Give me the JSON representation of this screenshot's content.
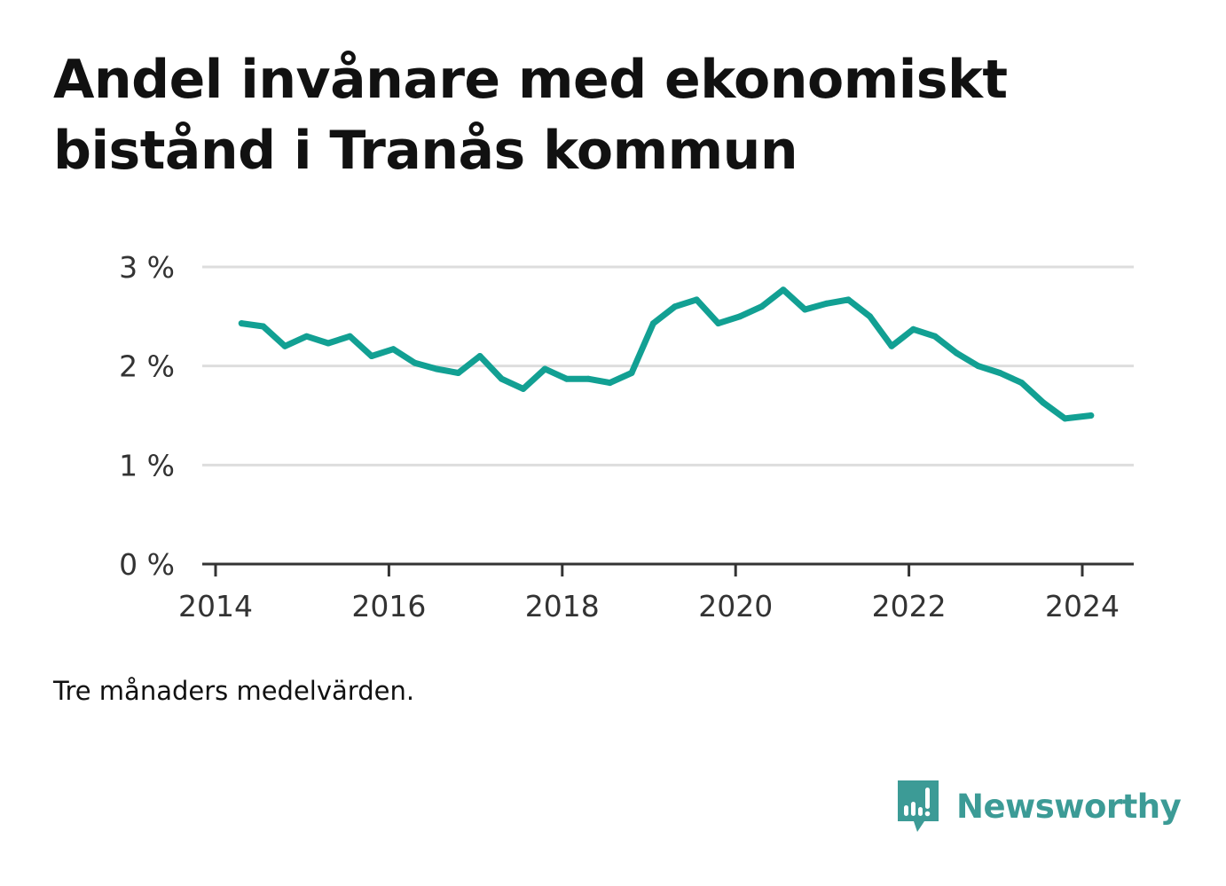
{
  "title": "Andel invånare med ekonomiskt bistånd i Tranås kommun",
  "note": "Tre månaders medelvärden.",
  "brand": {
    "name": "Newsworthy",
    "icon": "bar-chart-speech-bubble-icon",
    "color": "#3c9b96"
  },
  "chart_data": {
    "type": "line",
    "title": "Andel invånare med ekonomiskt bistånd i Tranås kommun",
    "xlabel": "",
    "ylabel": "",
    "x_ticks": [
      2014,
      2016,
      2018,
      2020,
      2022,
      2024
    ],
    "y_ticks": [
      0,
      1,
      2,
      3
    ],
    "y_tick_labels": [
      "0 %",
      "1 %",
      "2 %",
      "3 %"
    ],
    "xlim": [
      2014,
      2024.5
    ],
    "ylim": [
      0,
      3
    ],
    "grid": true,
    "line_color": "#12a093",
    "series": [
      {
        "x": [
          2014.3,
          2014.55,
          2014.8,
          2015.05,
          2015.3,
          2015.55,
          2015.8,
          2016.05,
          2016.3,
          2016.55,
          2016.8,
          2017.05,
          2017.3,
          2017.55,
          2017.8,
          2018.05,
          2018.3,
          2018.55,
          2018.8,
          2019.05,
          2019.3,
          2019.55,
          2019.8,
          2020.05,
          2020.3,
          2020.55,
          2020.8,
          2021.05,
          2021.3,
          2021.55,
          2021.8,
          2022.05,
          2022.3,
          2022.55,
          2022.8,
          2023.05,
          2023.3,
          2023.55,
          2023.8,
          2024.1
        ],
        "values": [
          2.43,
          2.4,
          2.2,
          2.3,
          2.23,
          2.3,
          2.1,
          2.17,
          2.03,
          1.97,
          1.93,
          2.1,
          1.87,
          1.77,
          1.97,
          1.87,
          1.87,
          1.83,
          1.93,
          2.43,
          2.6,
          2.67,
          2.43,
          2.5,
          2.6,
          2.77,
          2.57,
          2.63,
          2.67,
          2.5,
          2.2,
          2.37,
          2.3,
          2.13,
          2.0,
          1.93,
          1.83,
          1.63,
          1.47,
          1.5
        ]
      }
    ]
  }
}
